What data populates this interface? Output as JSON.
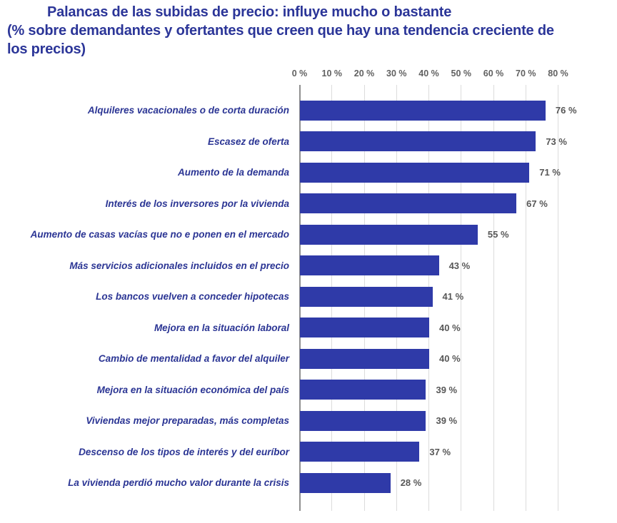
{
  "title": {
    "line1": "Palancas de las subidas de precio: influye mucho o bastante",
    "line2": "(% sobre demandantes y ofertantes que creen que hay una tendencia creciente de",
    "line3": "los precios)"
  },
  "colors": {
    "title": "#2b3598",
    "category_label": "#2b3594",
    "bar": "#2f3aa8",
    "tick_label": "#616161",
    "value_label": "#575757",
    "gridline": "#dcdcdc",
    "axis_line": "#8f8f8f",
    "background": "#ffffff"
  },
  "chart_data": {
    "type": "bar",
    "orientation": "horizontal",
    "title": "Palancas de las subidas de precio: influye mucho o bastante (% sobre demandantes y ofertantes que creen que hay una tendencia creciente de los precios)",
    "categories": [
      "Alquileres vacacionales o de corta duración",
      "Escasez de oferta",
      "Aumento de la demanda",
      "Interés de los inversores por la vivienda",
      "Aumento de casas vacías que no e ponen en el mercado",
      "Más servicios adicionales incluidos en el precio",
      "Los bancos vuelven a conceder hipotecas",
      "Mejora en la situación laboral",
      "Cambio de mentalidad a favor del alquiler",
      "Mejora en la situación económica del país",
      "Viviendas mejor preparadas, más completas",
      "Descenso de los tipos de interés y del euríbor",
      "La vivienda perdió mucho valor durante la crisis"
    ],
    "values": [
      76,
      73,
      71,
      67,
      55,
      43,
      41,
      40,
      40,
      39,
      39,
      37,
      28
    ],
    "value_labels": [
      "76 %",
      "73 %",
      "71 %",
      "67 %",
      "55 %",
      "43 %",
      "41 %",
      "40 %",
      "40 %",
      "39 %",
      "39 %",
      "37 %",
      "28 %"
    ],
    "x_tick_values": [
      0,
      10,
      20,
      30,
      40,
      50,
      60,
      70,
      80
    ],
    "x_tick_labels": [
      "0 %",
      "10 %",
      "20 %",
      "30 %",
      "40 %",
      "50 %",
      "60 %",
      "70 %",
      "80 %"
    ],
    "xlim": [
      0,
      80
    ],
    "xlabel": "",
    "ylabel": "",
    "grid": true,
    "gridline_orientation": "vertical",
    "value_labels_position": "right-of-bar",
    "axis_position": "top"
  }
}
